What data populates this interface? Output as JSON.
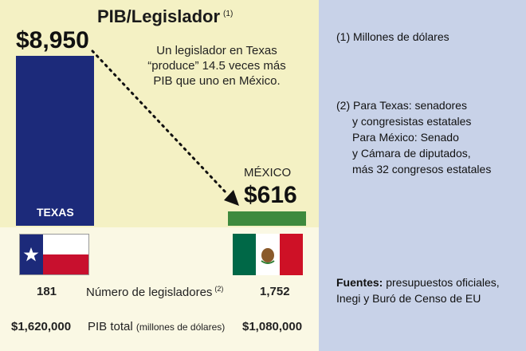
{
  "chart_data": {
    "type": "bar",
    "title": "PIB/Legislador",
    "title_note": "(1)",
    "categories": [
      "TEXAS",
      "MÉXICO"
    ],
    "values": [
      8950,
      616
    ],
    "value_labels": [
      "$8,950",
      "$616"
    ],
    "colors": {
      "texas": "#1c2a7a",
      "mexico": "#3e8a3e"
    },
    "annotation": "Un legislador en Texas “produce” 14.5 veces más PIB que uno en México."
  },
  "table": {
    "legislators_label": "Número de legisladores",
    "legislators_note": "(2)",
    "texas_legislators": "181",
    "mexico_legislators": "1,752",
    "pib_label": "PIB total",
    "pib_unit": "(millones de dólares)",
    "texas_pib": "$1,620,000",
    "mexico_pib": "$1,080,000"
  },
  "notes": {
    "n1": "(1) Millones de dólares",
    "n2_line1": "(2) Para Texas: senadores",
    "n2_line2": "y congresistas estatales",
    "n2_line3": "Para México: Senado",
    "n2_line4": "y Cámara de diputados,",
    "n2_line5": "más 32 congresos estatales",
    "sources_label": "Fuentes:",
    "sources_text": "presupuestos oficiales, Inegi y Buró de Censo de EU"
  },
  "background_colors": {
    "chart": "#f4f1c4",
    "table": "#faf8e4",
    "side": "#c8d2e8"
  }
}
